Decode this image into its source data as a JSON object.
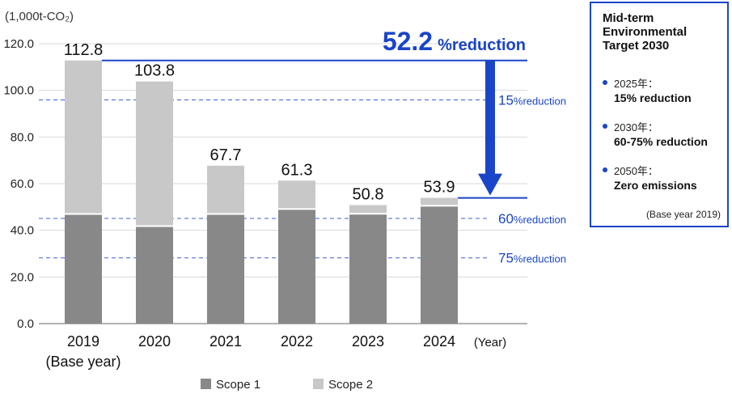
{
  "chart_data": {
    "type": "bar",
    "stacked": true,
    "unit_label": "(1,000t-CO₂)",
    "categories": [
      "2019",
      "2020",
      "2021",
      "2022",
      "2023",
      "2024"
    ],
    "category_sublabels": [
      "(Base year)",
      "",
      "",
      "",
      "",
      ""
    ],
    "xlabel": "(Year)",
    "ylim": [
      0,
      120
    ],
    "yticks": [
      "0.0",
      "20.0",
      "40.0",
      "60.0",
      "80.0",
      "100.0",
      "120.0"
    ],
    "series": [
      {
        "name": "Scope 1",
        "color": "#888888",
        "values": [
          47.0,
          41.8,
          47.0,
          49.1,
          47.1,
          50.5
        ]
      },
      {
        "name": "Scope 2",
        "color": "#c8c8c8",
        "values": [
          65.8,
          62.0,
          20.7,
          12.2,
          3.7,
          3.4
        ]
      }
    ],
    "totals": [
      "112.8",
      "103.8",
      "67.7",
      "61.3",
      "50.8",
      "53.9"
    ],
    "grid": true,
    "legend_position": "bottom",
    "reference_lines": [
      {
        "value": 95.9,
        "num": "15",
        "unit": "%reduction"
      },
      {
        "value": 45.1,
        "num": "60",
        "unit": "%reduction"
      },
      {
        "value": 28.2,
        "num": "75",
        "unit": "%reduction"
      }
    ],
    "reduction_callout": {
      "num": "52.2",
      "unit": "%reduction",
      "from": 112.8,
      "to": 53.9
    },
    "accent_color": "#1a45c8"
  },
  "target_box": {
    "title_lines": [
      "Mid-term",
      "Environmental",
      "Target 2030"
    ],
    "items": [
      {
        "year": "2025年：",
        "value": "15% reduction"
      },
      {
        "year": "2030年：",
        "value": "60-75% reduction"
      },
      {
        "year": "2050年：",
        "value": "Zero emissions"
      }
    ],
    "note": "(Base year 2019)"
  }
}
